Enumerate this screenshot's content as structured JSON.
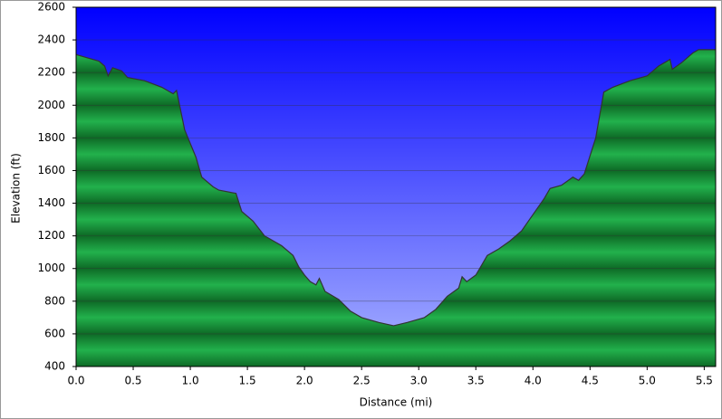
{
  "chart_data": {
    "type": "area",
    "x_label": "Distance (mi)",
    "y_label": "Elevation (ft)",
    "x": [
      0.0,
      0.1,
      0.2,
      0.25,
      0.28,
      0.32,
      0.4,
      0.45,
      0.6,
      0.75,
      0.85,
      0.88,
      0.95,
      1.05,
      1.1,
      1.2,
      1.25,
      1.4,
      1.45,
      1.55,
      1.65,
      1.8,
      1.9,
      1.95,
      2.0,
      2.05,
      2.1,
      2.13,
      2.18,
      2.3,
      2.4,
      2.5,
      2.65,
      2.78,
      2.9,
      3.05,
      3.15,
      3.25,
      3.35,
      3.38,
      3.42,
      3.5,
      3.6,
      3.7,
      3.8,
      3.9,
      4.0,
      4.1,
      4.15,
      4.25,
      4.35,
      4.4,
      4.45,
      4.55,
      4.62,
      4.7,
      4.85,
      5.0,
      5.05,
      5.1,
      5.2,
      5.22,
      5.3,
      5.4,
      5.45,
      5.6
    ],
    "values": [
      2310,
      2290,
      2270,
      2240,
      2180,
      2230,
      2210,
      2170,
      2150,
      2110,
      2070,
      2090,
      1850,
      1680,
      1560,
      1500,
      1480,
      1460,
      1350,
      1290,
      1200,
      1140,
      1080,
      1010,
      960,
      920,
      900,
      940,
      860,
      810,
      740,
      700,
      670,
      650,
      670,
      700,
      750,
      830,
      880,
      950,
      920,
      960,
      1080,
      1120,
      1170,
      1230,
      1330,
      1430,
      1490,
      1510,
      1560,
      1540,
      1580,
      1800,
      2080,
      2110,
      2150,
      2180,
      2210,
      2240,
      2280,
      2220,
      2260,
      2320,
      2340,
      2340
    ],
    "color": "#22b14c",
    "line_color": "#333333",
    "sky_color": "#0000ff",
    "xlim": [
      0,
      5.6
    ],
    "ylim": [
      400,
      2600
    ],
    "xticks": [
      {
        "value": 0,
        "label": "0.0"
      },
      0.5,
      {
        "value": 1,
        "label": "1.0"
      },
      1.5,
      {
        "value": 2,
        "label": "2.0"
      },
      2.5,
      {
        "value": 3,
        "label": "3.0"
      },
      3.5,
      {
        "value": 4,
        "label": "4.0"
      },
      4.5,
      {
        "value": 5,
        "label": "5.0"
      },
      5.5
    ],
    "yticks": [
      400,
      600,
      800,
      1000,
      1200,
      1400,
      1600,
      1800,
      2000,
      2200,
      2400,
      2600
    ],
    "grid": true
  }
}
